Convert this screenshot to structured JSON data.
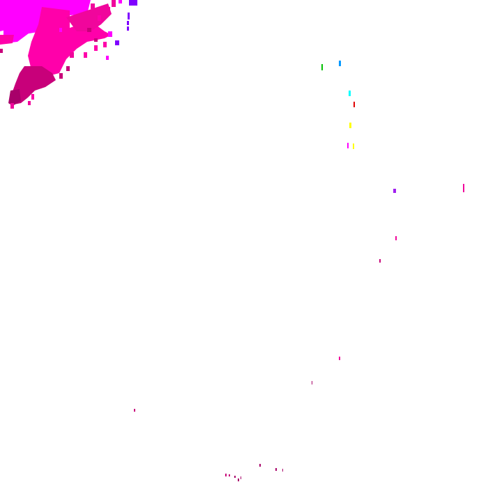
{
  "map": {
    "layer": "radar-precipitation-overlay",
    "background": "#ffffff",
    "palette": {
      "magenta": "#ff00ff",
      "pink": "#ff00aa",
      "hot_pink": "#f0069c",
      "dark_pink": "#c8007a",
      "deep_pink": "#a8006a",
      "violet": "#7f00ff",
      "purple": "#a020f0",
      "green": "#00c000",
      "blue": "#0099ff",
      "cyan": "#00ffff",
      "red": "#e00000",
      "yellow": "#ffff00"
    }
  }
}
